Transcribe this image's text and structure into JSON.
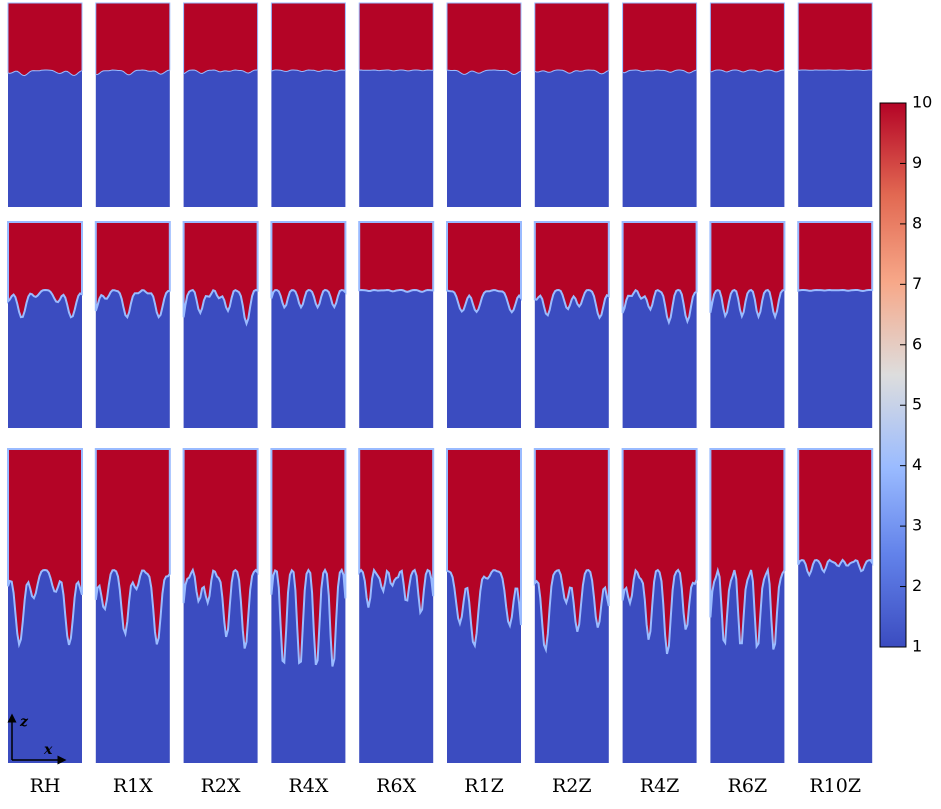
{
  "columns": [
    "RH",
    "R1X",
    "R2X",
    "R4X",
    "R6X",
    "R1Z",
    "R2Z",
    "R4Z",
    "R6Z",
    "R10Z"
  ],
  "colorbar": {
    "range": [
      1,
      10
    ],
    "ticks": [
      1,
      2,
      3,
      4,
      5,
      6,
      7,
      8,
      9,
      10
    ]
  },
  "axes": {
    "vertical": "z",
    "horizontal": "x"
  }
}
